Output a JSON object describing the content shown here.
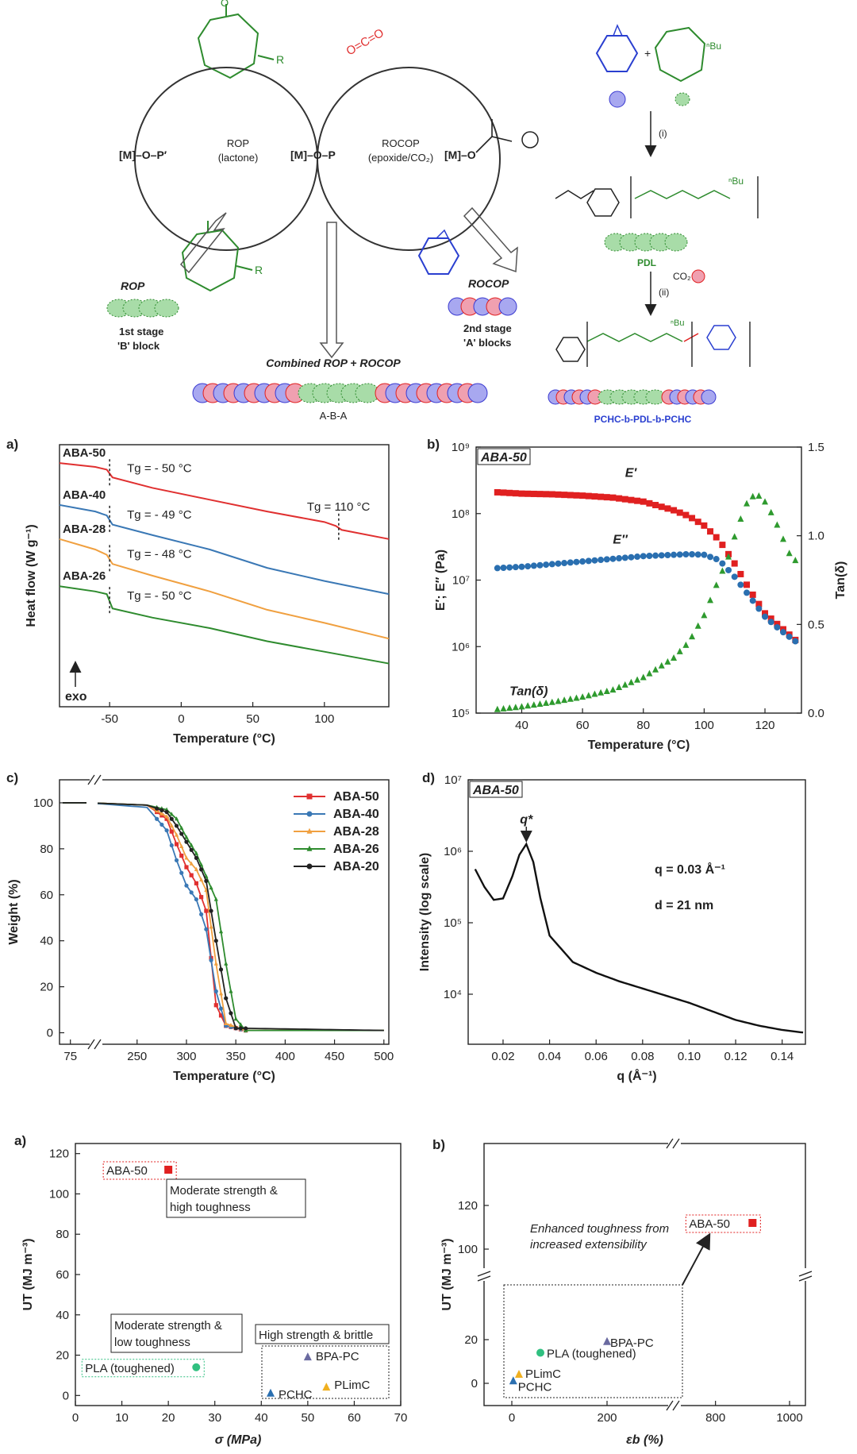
{
  "scheme": {
    "rop_title": "ROP",
    "rop_sub": "(lactone)",
    "rocop_title": "ROCOP",
    "rocop_sub": "(epoxide/CO₂)",
    "m_o_p1": "[M]–O–P′",
    "m_o_p": "[M]–O–P",
    "m_o_p2": "[M]–O",
    "co2": "O=C=O",
    "r": "R",
    "rop_italic": "ROP",
    "stage1": "1st stage",
    "stage1b": "'B' block",
    "rocop_italic": "ROCOP",
    "stage2": "2nd stage",
    "stage2b": "'A' blocks",
    "combined": "Combined ROP + ROCOP",
    "aba": "A-B-A",
    "step_i": "(i)",
    "step_ii": "(ii)",
    "pdl": "PDL",
    "co2_label": "CO₂",
    "nbu": "ⁿBu",
    "copolymer": "PCHC-b-PDL-b-PCHC"
  },
  "panels": {
    "a": "a)",
    "b": "b)",
    "c": "c)",
    "d": "d)",
    "a2": "a)",
    "b2": "b)"
  },
  "chart_data": [
    {
      "id": "dsc",
      "type": "line",
      "xlabel": "Temperature (°C)",
      "ylabel": "Heat flow (W g⁻¹)",
      "xlim": [
        -85,
        145
      ],
      "xticks": [
        -50,
        0,
        50,
        100
      ],
      "exo_label": "exo",
      "series": [
        {
          "name": "ABA-50",
          "color": "#e03030",
          "tg_label": "Tg = - 50 °C",
          "tg2_label": "Tg = 110 °C",
          "x": [
            -85,
            -60,
            -52,
            -48,
            -20,
            20,
            60,
            100,
            108,
            112,
            145
          ],
          "y": [
            0.93,
            0.915,
            0.905,
            0.875,
            0.835,
            0.79,
            0.745,
            0.705,
            0.69,
            0.675,
            0.64
          ]
        },
        {
          "name": "ABA-40",
          "color": "#3a78b5",
          "tg_label": "Tg = - 49 °C",
          "x": [
            -85,
            -60,
            -52,
            -48,
            -20,
            20,
            60,
            100,
            145
          ],
          "y": [
            0.77,
            0.745,
            0.73,
            0.695,
            0.655,
            0.6,
            0.53,
            0.48,
            0.43
          ]
        },
        {
          "name": "ABA-28",
          "color": "#f0a040",
          "tg_label": "Tg = - 48 °C",
          "x": [
            -85,
            -60,
            -52,
            -48,
            -20,
            20,
            60,
            100,
            145
          ],
          "y": [
            0.64,
            0.6,
            0.58,
            0.545,
            0.5,
            0.44,
            0.37,
            0.32,
            0.26
          ]
        },
        {
          "name": "ABA-26",
          "color": "#2e8b2e",
          "tg_label": "Tg = - 50 °C",
          "x": [
            -85,
            -60,
            -52,
            -48,
            -20,
            20,
            60,
            100,
            145
          ],
          "y": [
            0.46,
            0.44,
            0.43,
            0.375,
            0.34,
            0.3,
            0.25,
            0.21,
            0.165
          ]
        }
      ]
    },
    {
      "id": "dma",
      "type": "scatter",
      "sample": "ABA-50",
      "xlabel": "Temperature (°C)",
      "ylabel": "E′; E″ (Pa)",
      "y2label": "Tan(δ)",
      "xlim": [
        25,
        132
      ],
      "xticks": [
        40,
        60,
        80,
        100,
        120
      ],
      "ylim_log": [
        5,
        9
      ],
      "yticks": [
        "10⁵",
        "10⁶",
        "10⁷",
        "10⁸",
        "10⁹"
      ],
      "y2lim": [
        0,
        1.5
      ],
      "y2ticks": [
        "0.0",
        "0.5",
        "1.0",
        "1.5"
      ],
      "series": [
        {
          "name": "E′",
          "color": "#e02020",
          "x": [
            32,
            40,
            50,
            60,
            70,
            80,
            90,
            95,
            100,
            105,
            110,
            115,
            120,
            125,
            130
          ],
          "log_y": [
            8.32,
            8.3,
            8.29,
            8.27,
            8.24,
            8.18,
            8.05,
            7.96,
            7.82,
            7.6,
            7.25,
            6.85,
            6.5,
            6.3,
            6.1
          ]
        },
        {
          "name": "E″",
          "color": "#2a6fb0",
          "x": [
            32,
            40,
            50,
            60,
            70,
            80,
            90,
            95,
            100,
            105,
            110,
            115,
            120,
            125,
            130
          ],
          "log_y": [
            7.18,
            7.2,
            7.24,
            7.28,
            7.32,
            7.36,
            7.38,
            7.39,
            7.38,
            7.3,
            7.05,
            6.75,
            6.45,
            6.25,
            6.08
          ]
        },
        {
          "name": "Tan(δ)",
          "color": "#2e9a2e",
          "x": [
            32,
            40,
            50,
            60,
            70,
            80,
            90,
            95,
            100,
            104,
            108,
            111,
            114,
            117,
            120,
            123,
            126,
            129
          ],
          "y2": [
            0.02,
            0.035,
            0.06,
            0.09,
            0.13,
            0.2,
            0.31,
            0.4,
            0.55,
            0.72,
            0.88,
            1.05,
            1.18,
            1.24,
            1.19,
            1.1,
            0.98,
            0.86
          ]
        }
      ]
    },
    {
      "id": "tga",
      "type": "line",
      "xlabel": "Temperature (°C)",
      "ylabel": "Weight (%)",
      "ylim": [
        -5,
        110
      ],
      "yticks": [
        0,
        20,
        40,
        60,
        80,
        100
      ],
      "xticks": [
        75,
        250,
        300,
        350,
        400,
        450,
        500
      ],
      "series": [
        {
          "name": "ABA-50",
          "color": "#e03030",
          "x": [
            200,
            260,
            280,
            290,
            300,
            310,
            320,
            330,
            340,
            360,
            500
          ],
          "y": [
            100,
            99,
            93,
            82,
            72,
            65,
            53,
            12,
            3,
            1,
            1
          ]
        },
        {
          "name": "ABA-40",
          "color": "#3a78b5",
          "x": [
            200,
            260,
            280,
            290,
            300,
            310,
            320,
            330,
            340,
            360,
            500
          ],
          "y": [
            100,
            98,
            88,
            75,
            64,
            58,
            45,
            18,
            3,
            1,
            1
          ]
        },
        {
          "name": "ABA-28",
          "color": "#f0a040",
          "x": [
            200,
            260,
            280,
            290,
            300,
            310,
            320,
            330,
            340,
            360,
            500
          ],
          "y": [
            100,
            99,
            94,
            86,
            76,
            71,
            62,
            30,
            4,
            1,
            1
          ]
        },
        {
          "name": "ABA-26",
          "color": "#2e8b2e",
          "x": [
            200,
            260,
            280,
            290,
            300,
            310,
            320,
            330,
            340,
            350,
            360,
            500
          ],
          "y": [
            100,
            99,
            97,
            93,
            85,
            78,
            68,
            58,
            30,
            6,
            1,
            1
          ]
        },
        {
          "name": "ABA-20",
          "color": "#222222",
          "x": [
            200,
            260,
            280,
            290,
            300,
            310,
            320,
            330,
            340,
            350,
            500
          ],
          "y": [
            100,
            99,
            96,
            90,
            83,
            76,
            66,
            40,
            15,
            2,
            1
          ]
        }
      ]
    },
    {
      "id": "saxs",
      "type": "line",
      "sample": "ABA-50",
      "xlabel": "q (Å⁻¹)",
      "ylabel": "Intensity (log scale)",
      "xlim": [
        0.005,
        0.15
      ],
      "xticks": [
        0.02,
        0.04,
        0.06,
        0.08,
        0.1,
        0.12,
        0.14
      ],
      "xticklabels": [
        "0.02",
        "0.04",
        "0.06",
        "0.08",
        "0.10",
        "0.12",
        "0.14"
      ],
      "ylim_log": [
        3.3,
        7
      ],
      "yticks": [
        "10⁴",
        "10⁵",
        "10⁶",
        "10⁷"
      ],
      "peak_label": "q*",
      "q_note": "q = 0.03 Å⁻¹",
      "d_note": "d = 21 nm",
      "x": [
        0.008,
        0.012,
        0.016,
        0.02,
        0.024,
        0.027,
        0.03,
        0.033,
        0.036,
        0.04,
        0.05,
        0.06,
        0.07,
        0.08,
        0.09,
        0.1,
        0.11,
        0.12,
        0.13,
        0.14,
        0.15
      ],
      "log_y": [
        5.75,
        5.5,
        5.32,
        5.34,
        5.65,
        5.95,
        6.1,
        5.85,
        5.35,
        4.82,
        4.45,
        4.3,
        4.18,
        4.08,
        3.98,
        3.88,
        3.76,
        3.64,
        3.56,
        3.5,
        3.46
      ]
    },
    {
      "id": "ashby1",
      "type": "scatter",
      "xlabel": "σ (MPa)",
      "ylabel": "UT (MJ m⁻³)",
      "xlim": [
        0,
        70
      ],
      "ylim": [
        -5,
        125
      ],
      "xticks": [
        0,
        10,
        20,
        30,
        40,
        50,
        60,
        70
      ],
      "yticks": [
        0,
        20,
        40,
        60,
        80,
        100,
        120
      ],
      "points": [
        {
          "name": "ABA-50",
          "x": 20,
          "y": 112,
          "color": "#e02020",
          "shape": "square"
        },
        {
          "name": "PLA (toughened)",
          "x": 26,
          "y": 14,
          "color": "#30c080",
          "shape": "circle"
        },
        {
          "name": "BPA-PC",
          "x": 50,
          "y": 19,
          "color": "#6a6aa0",
          "shape": "triangle"
        },
        {
          "name": "PCHC",
          "x": 42,
          "y": 1,
          "color": "#2a6fb0",
          "shape": "triangle"
        },
        {
          "name": "PLimC",
          "x": 54,
          "y": 4,
          "color": "#f0b020",
          "shape": "triangle"
        }
      ],
      "notes": [
        "Moderate strength &",
        "high toughness",
        "Moderate strength &",
        "low toughness",
        "High strength & brittle"
      ]
    },
    {
      "id": "ashby2",
      "type": "scatter",
      "xlabel": "εb (%)",
      "ylabel": "UT (MJ m⁻³)",
      "xticks": [
        "0",
        "200",
        "800",
        "1000"
      ],
      "yticks": [
        "0",
        "20",
        "100",
        "120"
      ],
      "points": [
        {
          "name": "ABA-50",
          "x": 900,
          "y": 112,
          "color": "#e02020",
          "shape": "square"
        },
        {
          "name": "BPA-PC",
          "x": 200,
          "y": 19,
          "color": "#6a6aa0",
          "shape": "triangle"
        },
        {
          "name": "PLA (toughened)",
          "x": 60,
          "y": 14,
          "color": "#30c080",
          "shape": "circle"
        },
        {
          "name": "PLimC",
          "x": 15,
          "y": 4,
          "color": "#f0b020",
          "shape": "triangle"
        },
        {
          "name": "PCHC",
          "x": 3,
          "y": 1,
          "color": "#2a6fb0",
          "shape": "triangle"
        }
      ],
      "note1": "Enhanced toughness from",
      "note2": "increased extensibility"
    }
  ]
}
